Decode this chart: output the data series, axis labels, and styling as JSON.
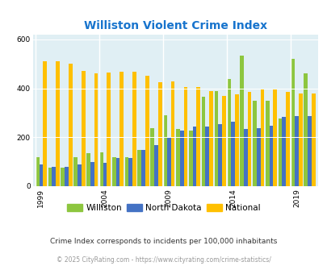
{
  "title": "Williston Violent Crime Index",
  "title_color": "#1874CD",
  "years": [
    1999,
    2000,
    2001,
    2002,
    2003,
    2004,
    2005,
    2006,
    2007,
    2008,
    2009,
    2010,
    2011,
    2012,
    2013,
    2014,
    2015,
    2016,
    2017,
    2018,
    2019,
    2020
  ],
  "williston": [
    120,
    75,
    75,
    120,
    135,
    138,
    120,
    120,
    148,
    238,
    290,
    235,
    228,
    365,
    390,
    440,
    535,
    350,
    350,
    278,
    520,
    460
  ],
  "north_dakota": [
    88,
    78,
    78,
    88,
    100,
    95,
    115,
    115,
    148,
    168,
    202,
    226,
    245,
    245,
    255,
    263,
    235,
    238,
    248,
    283,
    286,
    288
  ],
  "national": [
    510,
    510,
    500,
    472,
    462,
    465,
    468,
    468,
    452,
    425,
    428,
    405,
    405,
    390,
    368,
    375,
    385,
    400,
    395,
    385,
    380,
    379
  ],
  "bar_colors": {
    "williston": "#8DC63F",
    "north_dakota": "#4472C4",
    "national": "#FFC000"
  },
  "ylim": [
    0,
    620
  ],
  "yticks": [
    0,
    200,
    400,
    600
  ],
  "xlabel_ticks": [
    1999,
    2004,
    2009,
    2014,
    2019
  ],
  "plot_bg": "#E0EFF4",
  "legend_labels": [
    "Williston",
    "North Dakota",
    "National"
  ],
  "footnote1": "Crime Index corresponds to incidents per 100,000 inhabitants",
  "footnote2": "© 2025 CityRating.com - https://www.cityrating.com/crime-statistics/"
}
